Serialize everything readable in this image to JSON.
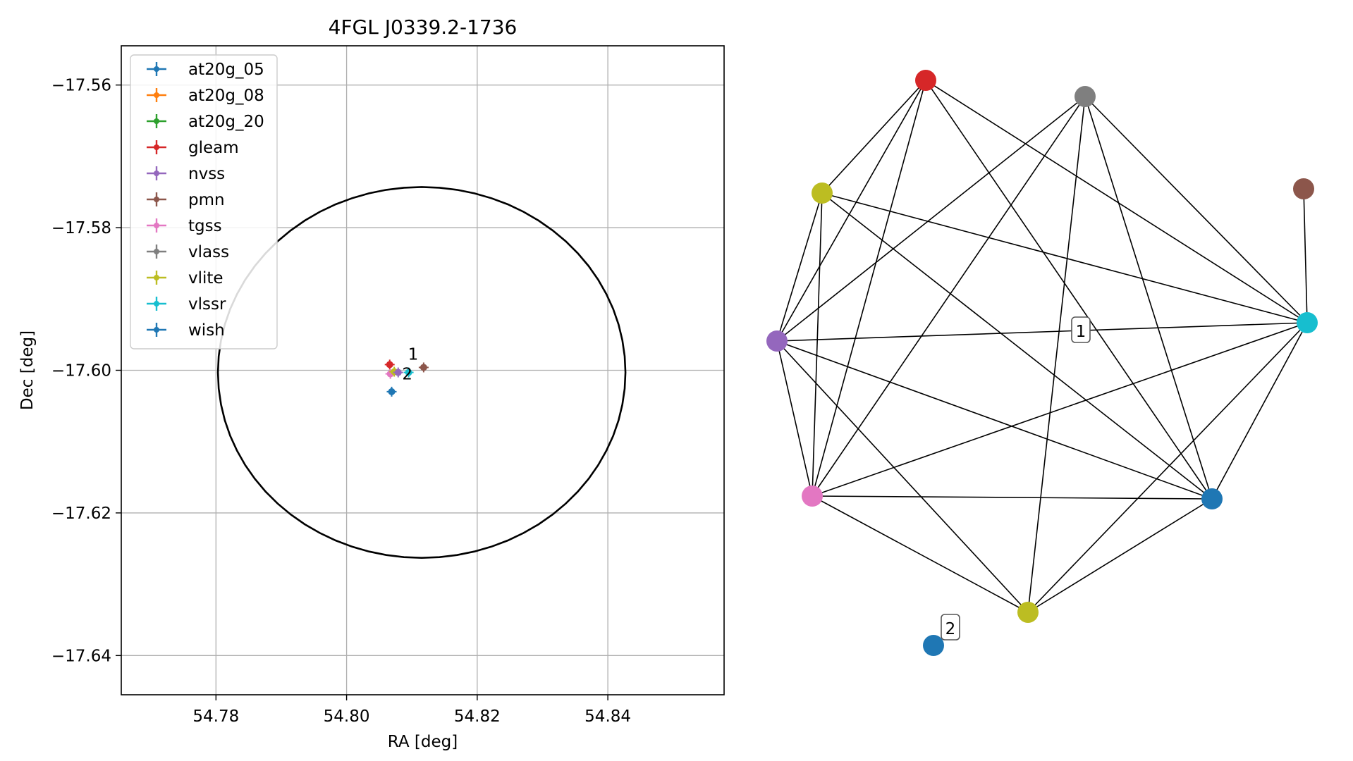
{
  "chart_data": [
    {
      "type": "scatter",
      "title": "4FGL J0339.2-1736",
      "xlabel": "RA [deg]",
      "ylabel": "Dec [deg]",
      "xlim": [
        54.7655,
        54.8578
      ],
      "ylim": [
        -17.6455,
        -17.5545
      ],
      "x_ticks": [
        54.78,
        54.8,
        54.82,
        54.84
      ],
      "x_tick_labels": [
        "54.78",
        "54.80",
        "54.82",
        "54.84"
      ],
      "y_ticks": [
        -17.56,
        -17.58,
        -17.6,
        -17.62,
        -17.64
      ],
      "y_tick_labels": [
        "−17.56",
        "−17.58",
        "−17.60",
        "−17.62",
        "−17.64"
      ],
      "grid": true,
      "legend_position": "upper-left",
      "legend": [
        {
          "label": "at20g_05",
          "color": "#1f77b4"
        },
        {
          "label": "at20g_08",
          "color": "#ff7f0e"
        },
        {
          "label": "at20g_20",
          "color": "#2ca02c"
        },
        {
          "label": "gleam",
          "color": "#d62728"
        },
        {
          "label": "nvss",
          "color": "#9467bd"
        },
        {
          "label": "pmn",
          "color": "#8c564b"
        },
        {
          "label": "tgss",
          "color": "#e377c2"
        },
        {
          "label": "vlass",
          "color": "#7f7f7f"
        },
        {
          "label": "vlite",
          "color": "#bcbd22"
        },
        {
          "label": "vlssr",
          "color": "#17becf"
        },
        {
          "label": "wish",
          "color": "#1f77b4"
        }
      ],
      "ellipse": {
        "center": [
          54.8115,
          -17.6003
        ],
        "ra_half_width": 0.0312,
        "dec_half_height": 0.026,
        "color": "#000000"
      },
      "points": [
        {
          "x": 54.8066,
          "y": -17.5992,
          "color": "#d62728"
        },
        {
          "x": 54.8067,
          "y": -17.6005,
          "color": "#e377c2"
        },
        {
          "x": 54.8073,
          "y": -17.6002,
          "color": "#bcbd22"
        },
        {
          "x": 54.8079,
          "y": -17.6003,
          "color": "#9467bd"
        },
        {
          "x": 54.8095,
          "y": -17.6003,
          "color": "#17becf"
        },
        {
          "x": 54.8118,
          "y": -17.5996,
          "color": "#8c564b"
        },
        {
          "x": 54.8069,
          "y": -17.603,
          "color": "#1f77b4"
        }
      ],
      "annotations": [
        {
          "text": "1",
          "x": 54.8094,
          "y": -17.5985
        },
        {
          "text": "2",
          "x": 54.8085,
          "y": -17.6013
        }
      ]
    },
    {
      "type": "network",
      "nodes": [
        {
          "id": "red",
          "color": "#d62728"
        },
        {
          "id": "gray",
          "color": "#7f7f7f"
        },
        {
          "id": "brown",
          "color": "#8c564b"
        },
        {
          "id": "olive-top",
          "color": "#bcbd22"
        },
        {
          "id": "purple",
          "color": "#9467bd"
        },
        {
          "id": "cyan",
          "color": "#17becf"
        },
        {
          "id": "pink",
          "color": "#e377c2"
        },
        {
          "id": "blue-right",
          "color": "#1f77b4"
        },
        {
          "id": "olive-bottom",
          "color": "#bcbd22"
        },
        {
          "id": "blue-isolated",
          "color": "#1f77b4"
        }
      ],
      "edges": [
        [
          "red",
          "olive-top"
        ],
        [
          "red",
          "purple"
        ],
        [
          "red",
          "pink"
        ],
        [
          "red",
          "blue-right"
        ],
        [
          "red",
          "cyan"
        ],
        [
          "gray",
          "purple"
        ],
        [
          "gray",
          "pink"
        ],
        [
          "gray",
          "olive-bottom"
        ],
        [
          "gray",
          "blue-right"
        ],
        [
          "gray",
          "cyan"
        ],
        [
          "olive-top",
          "purple"
        ],
        [
          "olive-top",
          "pink"
        ],
        [
          "olive-top",
          "blue-right"
        ],
        [
          "olive-top",
          "cyan"
        ],
        [
          "purple",
          "pink"
        ],
        [
          "purple",
          "cyan"
        ],
        [
          "purple",
          "blue-right"
        ],
        [
          "purple",
          "olive-bottom"
        ],
        [
          "pink",
          "blue-right"
        ],
        [
          "pink",
          "cyan"
        ],
        [
          "pink",
          "olive-bottom"
        ],
        [
          "blue-right",
          "cyan"
        ],
        [
          "blue-right",
          "olive-bottom"
        ],
        [
          "cyan",
          "olive-bottom"
        ],
        [
          "cyan",
          "brown"
        ]
      ],
      "labels": [
        {
          "text": "1"
        },
        {
          "text": "2"
        }
      ]
    }
  ]
}
